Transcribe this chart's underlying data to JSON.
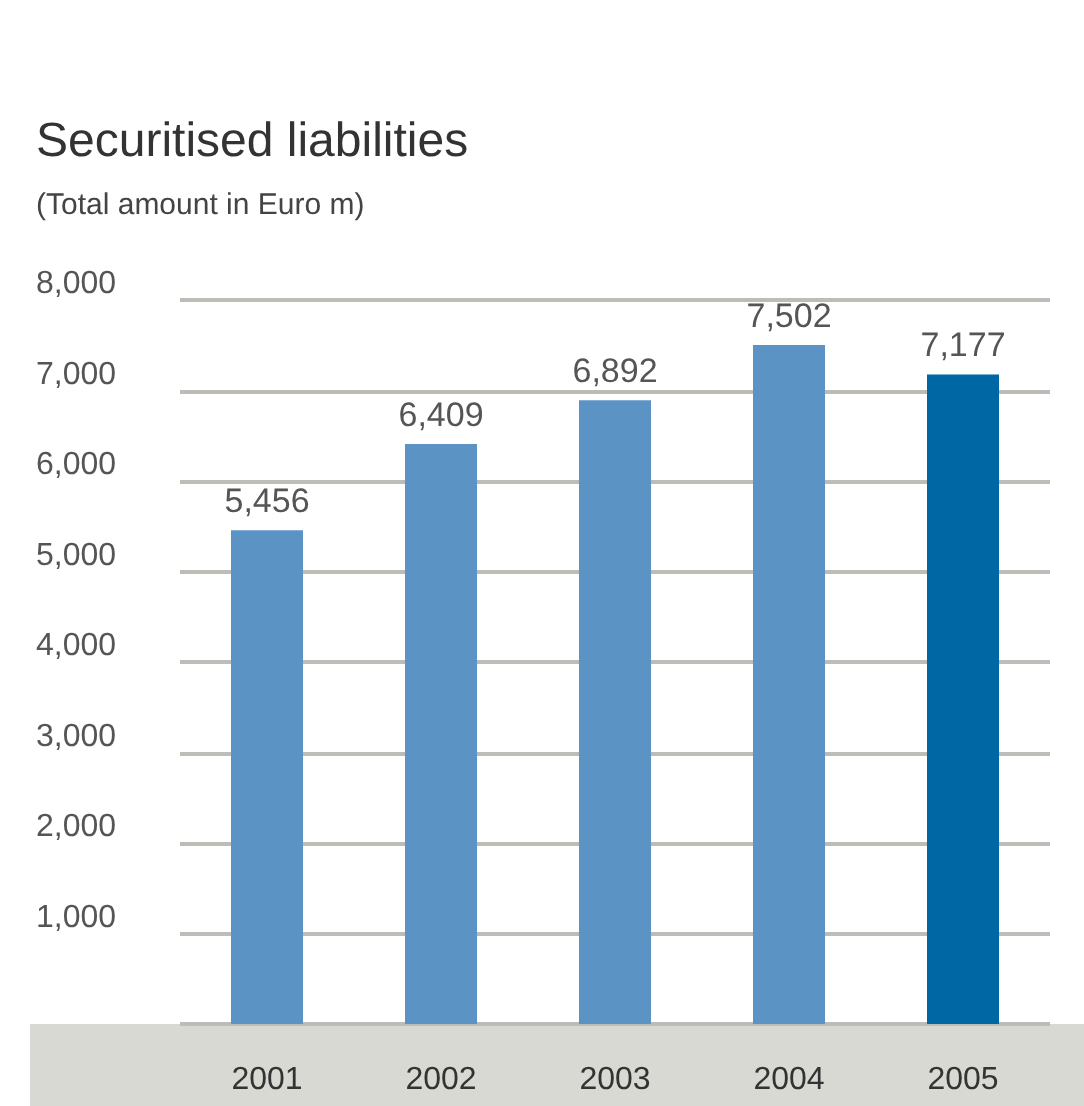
{
  "chart_data": {
    "type": "bar",
    "title": "Securitised liabilities",
    "subtitle": "(Total amount in Euro m)",
    "categories": [
      "2001",
      "2002",
      "2003",
      "2004",
      "2005"
    ],
    "values": [
      5456,
      6409,
      6892,
      7502,
      7177
    ],
    "colors": [
      "#5b93c5",
      "#5b93c5",
      "#5b93c5",
      "#5b93c5",
      "#0067a5"
    ],
    "value_labels": [
      "5,456",
      "6,409",
      "6,892",
      "7,502",
      "7,177"
    ],
    "ylim": [
      0,
      8000
    ],
    "yticks": [
      {
        "value": 0,
        "label": null
      },
      {
        "value": 1000,
        "label": "1,000"
      },
      {
        "value": 2000,
        "label": "2,000"
      },
      {
        "value": 3000,
        "label": "3,000"
      },
      {
        "value": 4000,
        "label": "4,000"
      },
      {
        "value": 5000,
        "label": "5,000"
      },
      {
        "value": 6000,
        "label": "6,000"
      },
      {
        "value": 7000,
        "label": "7,000"
      },
      {
        "value": 8000,
        "label": "8,000"
      }
    ],
    "grid": "y"
  }
}
